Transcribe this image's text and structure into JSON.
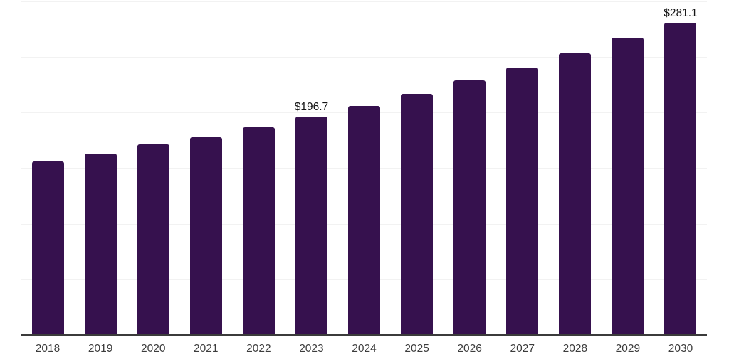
{
  "chart_data": {
    "type": "bar",
    "title": "",
    "xlabel": "",
    "ylabel": "",
    "categories": [
      "2018",
      "2019",
      "2020",
      "2021",
      "2022",
      "2023",
      "2024",
      "2025",
      "2026",
      "2027",
      "2028",
      "2029",
      "2030"
    ],
    "values": [
      155.8,
      163.4,
      171.7,
      178.1,
      187.1,
      196.7,
      205.9,
      217.1,
      228.7,
      240.3,
      253.6,
      267.2,
      281.1
    ],
    "point_labels": [
      null,
      null,
      null,
      null,
      null,
      "$196.7",
      null,
      null,
      null,
      null,
      null,
      null,
      "$281.1"
    ],
    "labeled_points": [
      {
        "category": "2023",
        "label": "$196.7"
      },
      {
        "category": "2030",
        "label": "$281.1"
      }
    ],
    "ylim": [
      0,
      300
    ],
    "grid_step": 50,
    "grid": true,
    "legend": false,
    "y_tick_labels_visible": false
  },
  "style": {
    "bar_color": "#36114E",
    "grid_color": "#f2f2f2",
    "axis_color": "#3b3b3b",
    "value_label_color": "#141414",
    "tick_label_color": "#3c3c3c",
    "background_color": "#ffffff"
  }
}
